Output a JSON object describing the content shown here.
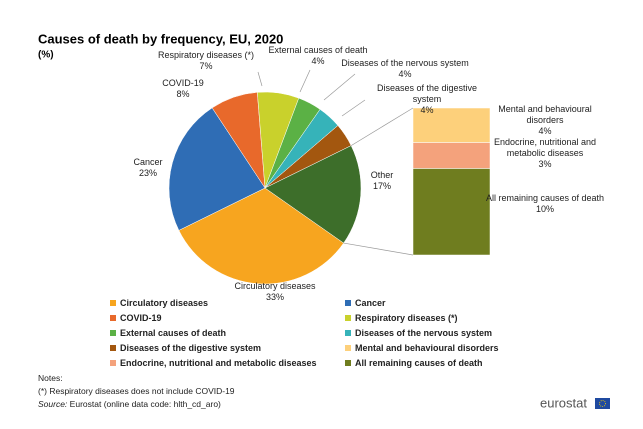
{
  "chart_data": {
    "type": "pie-of-bar",
    "title": "Causes of death by frequency, EU, 2020",
    "subtitle": "(%)",
    "categories": [
      "Circulatory diseases",
      "Cancer",
      "COVID-19",
      "Respiratory diseases (*)",
      "External causes of death",
      "Diseases of the nervous system",
      "Diseases of the digestive system"
    ],
    "values": [
      33,
      23,
      8,
      7,
      4,
      4,
      4
    ],
    "value_labels": [
      "33%",
      "23%",
      "8%",
      "7%",
      "4%",
      "4%",
      "4%"
    ],
    "colors": [
      "#f7a51f",
      "#2f6db5",
      "#e8692b",
      "#c9d12c",
      "#5bb145",
      "#36b3b9",
      "#a3570f"
    ],
    "other": {
      "name": "Other",
      "value": 17,
      "value_label": "17%",
      "color": "#3d6e2a"
    },
    "bar": {
      "categories": [
        "Mental and behavioural disorders",
        "Endocrine, nutritional and metabolic diseases",
        "All remaining causes of death"
      ],
      "values": [
        4,
        3,
        10
      ],
      "value_labels": [
        "4%",
        "3%",
        "10%"
      ],
      "colors": [
        "#fdd07b",
        "#f4a27c",
        "#6f7d1f"
      ]
    },
    "notes": {
      "heading": "Notes:",
      "footnote": "(*) Respiratory diseases does not include COVID-19",
      "source_label": "Source:",
      "source": "Eurostat (online data code: hlth_cd_aro)"
    },
    "logo": "eurostat"
  }
}
